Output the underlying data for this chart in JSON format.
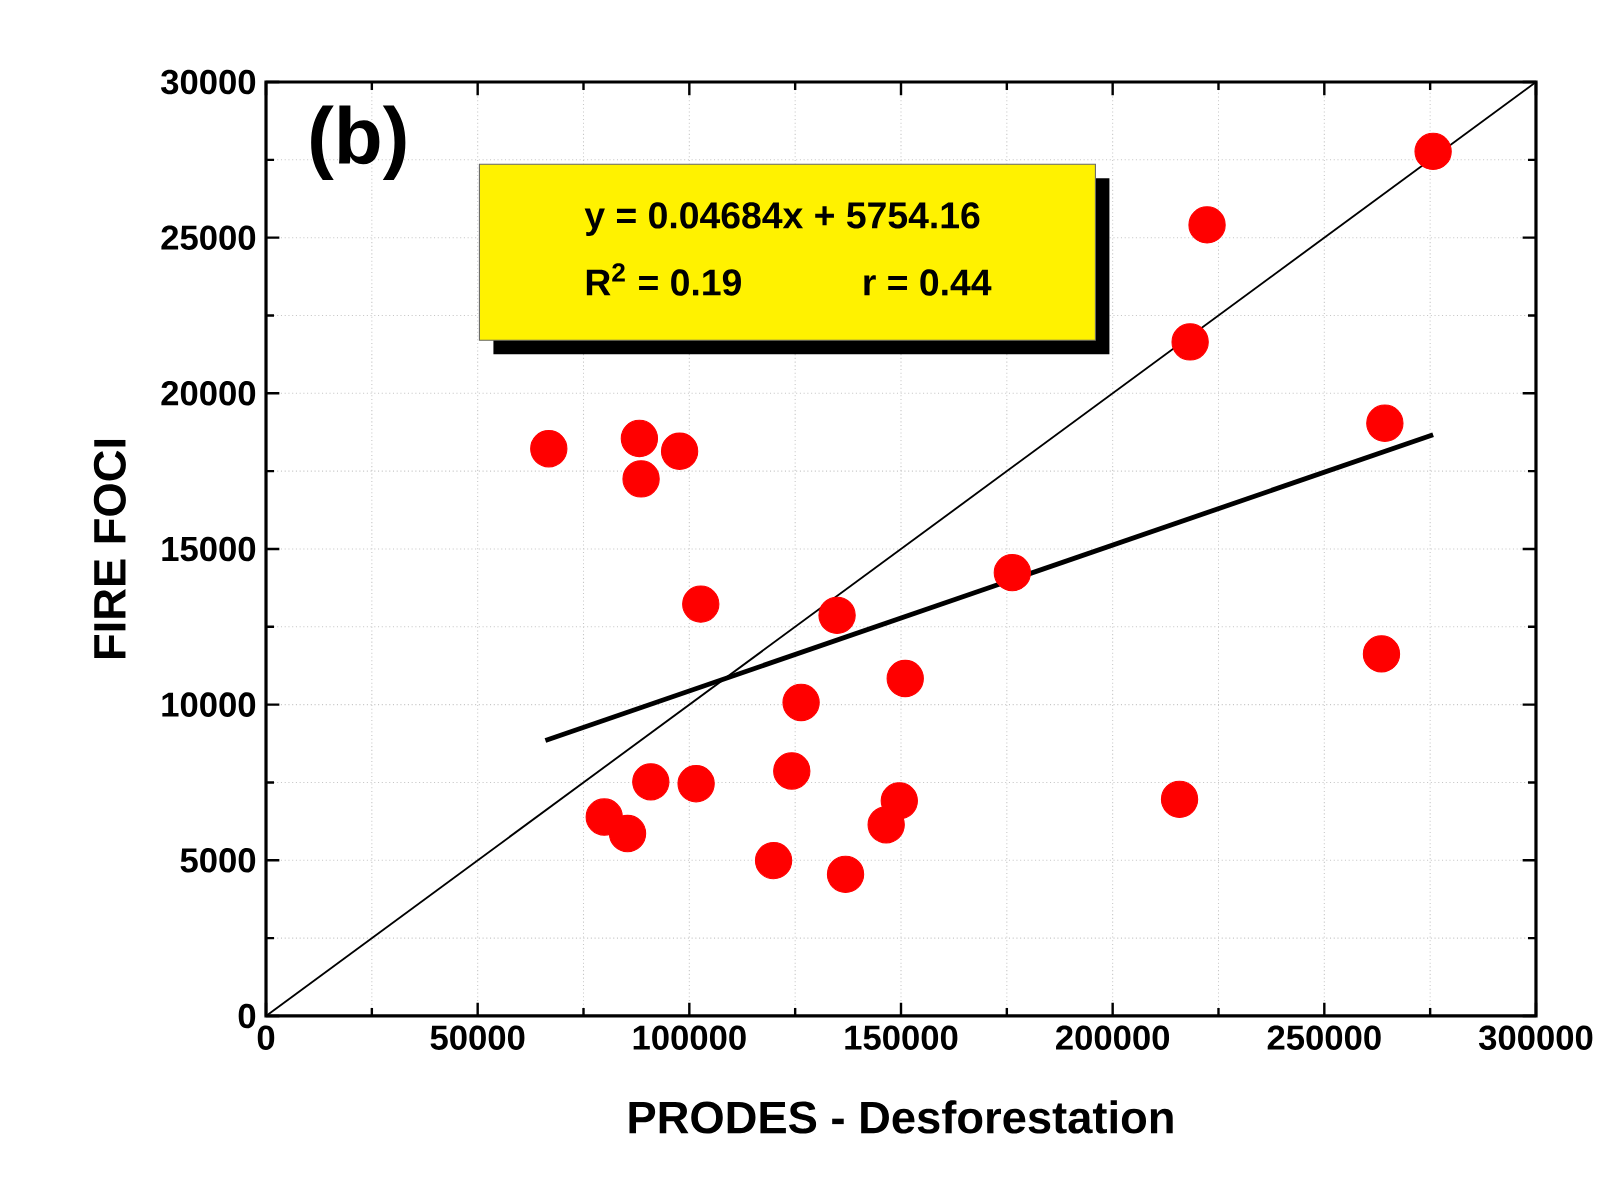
{
  "chart_data": {
    "type": "scatter",
    "xlabel": "PRODES - Desforestation",
    "ylabel": "FIRE FOCI",
    "xlim": [
      0,
      300000
    ],
    "ylim": [
      0,
      30000
    ],
    "xticks": [
      0,
      50000,
      100000,
      150000,
      200000,
      250000,
      300000
    ],
    "yticks": [
      0,
      5000,
      10000,
      15000,
      20000,
      25000,
      30000
    ],
    "grid": true,
    "annotations": [
      "(b)",
      "y = 0.04684x + 5754.16",
      "R$^{2}$ = 0.19",
      "r = 0.44"
    ],
    "series": [
      {
        "color": "#ff0000",
        "marker": "circle",
        "x": [
          275700,
          222300,
          218300,
          264300,
          66800,
          88200,
          97700,
          88600,
          176300,
          102700,
          134900,
          263500,
          151000,
          126400,
          90900,
          101600,
          124200,
          79900,
          85400,
          149600,
          146500,
          215800,
          119900,
          136900
        ],
        "values": [
          27770,
          25410,
          21650,
          19040,
          18220,
          18550,
          18140,
          17250,
          14240,
          13230,
          12870,
          11630,
          10840,
          10070,
          7520,
          7460,
          7870,
          6390,
          5860,
          6910,
          6140,
          6960,
          4990,
          4550
        ]
      },
      {
        "type": "line",
        "color": "#000000",
        "marker": "none",
        "x": [
          66000,
          275700
        ],
        "values": [
          8850,
          18670
        ]
      },
      {
        "type": "line",
        "color": "#000000",
        "marker": "none",
        "x": [
          0,
          300000
        ],
        "values": [
          0,
          30000
        ]
      }
    ]
  }
}
